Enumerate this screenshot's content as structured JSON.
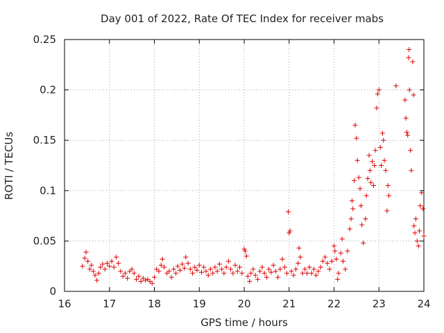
{
  "chart_data": {
    "type": "scatter",
    "title": "Day 001 of 2022, Rate Of TEC Index for receiver mabs",
    "xlabel": "GPS time / hours",
    "ylabel": "ROTI / TECUs",
    "xlim": [
      16,
      24
    ],
    "ylim": [
      0,
      0.25
    ],
    "x_ticks": [
      16,
      17,
      18,
      19,
      20,
      21,
      22,
      23,
      24
    ],
    "x_tick_labels": [
      "16",
      "17",
      "18",
      "19",
      "20",
      "21",
      "22",
      "23",
      "24"
    ],
    "y_ticks": [
      0,
      0.05,
      0.1,
      0.15,
      0.2,
      0.25
    ],
    "y_tick_labels": [
      "0",
      "0.05",
      "0.1",
      "0.15",
      "0.2",
      "0.25"
    ],
    "grid": true,
    "marker": "plus",
    "color": "#dd0000",
    "series": [
      {
        "name": "ROTI",
        "points": [
          [
            16.4,
            0.025
          ],
          [
            16.45,
            0.033
          ],
          [
            16.48,
            0.039
          ],
          [
            16.52,
            0.03
          ],
          [
            16.56,
            0.022
          ],
          [
            16.6,
            0.026
          ],
          [
            16.64,
            0.02
          ],
          [
            16.68,
            0.016
          ],
          [
            16.72,
            0.011
          ],
          [
            16.76,
            0.018
          ],
          [
            16.8,
            0.024
          ],
          [
            16.85,
            0.027
          ],
          [
            16.9,
            0.022
          ],
          [
            16.95,
            0.028
          ],
          [
            17.0,
            0.025
          ],
          [
            17.05,
            0.03
          ],
          [
            17.1,
            0.024
          ],
          [
            17.15,
            0.034
          ],
          [
            17.2,
            0.028
          ],
          [
            17.25,
            0.02
          ],
          [
            17.3,
            0.015
          ],
          [
            17.35,
            0.018
          ],
          [
            17.4,
            0.013
          ],
          [
            17.45,
            0.02
          ],
          [
            17.5,
            0.022
          ],
          [
            17.55,
            0.018
          ],
          [
            17.6,
            0.012
          ],
          [
            17.65,
            0.015
          ],
          [
            17.7,
            0.01
          ],
          [
            17.75,
            0.013
          ],
          [
            17.8,
            0.011
          ],
          [
            17.85,
            0.012
          ],
          [
            17.9,
            0.01
          ],
          [
            17.95,
            0.008
          ],
          [
            18.0,
            0.014
          ],
          [
            18.05,
            0.022
          ],
          [
            18.1,
            0.02
          ],
          [
            18.15,
            0.026
          ],
          [
            18.18,
            0.032
          ],
          [
            18.22,
            0.024
          ],
          [
            18.28,
            0.018
          ],
          [
            18.33,
            0.02
          ],
          [
            18.38,
            0.014
          ],
          [
            18.43,
            0.022
          ],
          [
            18.48,
            0.018
          ],
          [
            18.52,
            0.025
          ],
          [
            18.57,
            0.021
          ],
          [
            18.62,
            0.027
          ],
          [
            18.67,
            0.023
          ],
          [
            18.7,
            0.034
          ],
          [
            18.75,
            0.028
          ],
          [
            18.8,
            0.022
          ],
          [
            18.85,
            0.018
          ],
          [
            18.9,
            0.024
          ],
          [
            18.95,
            0.021
          ],
          [
            19.0,
            0.026
          ],
          [
            19.05,
            0.019
          ],
          [
            19.1,
            0.024
          ],
          [
            19.15,
            0.02
          ],
          [
            19.2,
            0.016
          ],
          [
            19.25,
            0.022
          ],
          [
            19.3,
            0.018
          ],
          [
            19.35,
            0.024
          ],
          [
            19.4,
            0.02
          ],
          [
            19.45,
            0.027
          ],
          [
            19.5,
            0.022
          ],
          [
            19.55,
            0.018
          ],
          [
            19.6,
            0.024
          ],
          [
            19.65,
            0.03
          ],
          [
            19.7,
            0.022
          ],
          [
            19.75,
            0.018
          ],
          [
            19.8,
            0.026
          ],
          [
            19.85,
            0.02
          ],
          [
            19.9,
            0.024
          ],
          [
            19.95,
            0.018
          ],
          [
            20.0,
            0.042
          ],
          [
            20.02,
            0.04
          ],
          [
            20.05,
            0.035
          ],
          [
            20.08,
            0.015
          ],
          [
            20.12,
            0.01
          ],
          [
            20.15,
            0.018
          ],
          [
            20.2,
            0.022
          ],
          [
            20.25,
            0.016
          ],
          [
            20.3,
            0.012
          ],
          [
            20.35,
            0.02
          ],
          [
            20.4,
            0.024
          ],
          [
            20.45,
            0.018
          ],
          [
            20.5,
            0.014
          ],
          [
            20.55,
            0.022
          ],
          [
            20.6,
            0.019
          ],
          [
            20.65,
            0.026
          ],
          [
            20.7,
            0.02
          ],
          [
            20.75,
            0.014
          ],
          [
            20.8,
            0.022
          ],
          [
            20.85,
            0.032
          ],
          [
            20.9,
            0.024
          ],
          [
            20.95,
            0.018
          ],
          [
            20.98,
            0.079
          ],
          [
            21.0,
            0.058
          ],
          [
            21.02,
            0.06
          ],
          [
            21.05,
            0.02
          ],
          [
            21.1,
            0.016
          ],
          [
            21.15,
            0.022
          ],
          [
            21.2,
            0.028
          ],
          [
            21.22,
            0.043
          ],
          [
            21.25,
            0.034
          ],
          [
            21.3,
            0.018
          ],
          [
            21.35,
            0.022
          ],
          [
            21.4,
            0.018
          ],
          [
            21.45,
            0.024
          ],
          [
            21.5,
            0.018
          ],
          [
            21.55,
            0.022
          ],
          [
            21.6,
            0.016
          ],
          [
            21.65,
            0.02
          ],
          [
            21.7,
            0.024
          ],
          [
            21.75,
            0.03
          ],
          [
            21.8,
            0.034
          ],
          [
            21.85,
            0.028
          ],
          [
            21.9,
            0.022
          ],
          [
            21.95,
            0.03
          ],
          [
            22.0,
            0.045
          ],
          [
            22.02,
            0.04
          ],
          [
            22.05,
            0.032
          ],
          [
            22.08,
            0.012
          ],
          [
            22.1,
            0.018
          ],
          [
            22.15,
            0.038
          ],
          [
            22.18,
            0.052
          ],
          [
            22.2,
            0.03
          ],
          [
            22.25,
            0.022
          ],
          [
            22.3,
            0.04
          ],
          [
            22.35,
            0.062
          ],
          [
            22.38,
            0.072
          ],
          [
            22.4,
            0.09
          ],
          [
            22.42,
            0.082
          ],
          [
            22.45,
            0.11
          ],
          [
            22.47,
            0.165
          ],
          [
            22.5,
            0.152
          ],
          [
            22.52,
            0.13
          ],
          [
            22.55,
            0.113
          ],
          [
            22.58,
            0.102
          ],
          [
            22.6,
            0.085
          ],
          [
            22.62,
            0.066
          ],
          [
            22.65,
            0.048
          ],
          [
            22.7,
            0.072
          ],
          [
            22.72,
            0.095
          ],
          [
            22.75,
            0.112
          ],
          [
            22.78,
            0.135
          ],
          [
            22.8,
            0.12
          ],
          [
            22.82,
            0.108
          ],
          [
            22.85,
            0.129
          ],
          [
            22.88,
            0.105
          ],
          [
            22.9,
            0.125
          ],
          [
            22.92,
            0.14
          ],
          [
            22.95,
            0.182
          ],
          [
            22.97,
            0.196
          ],
          [
            23.0,
            0.2
          ],
          [
            23.03,
            0.143
          ],
          [
            23.05,
            0.125
          ],
          [
            23.08,
            0.157
          ],
          [
            23.1,
            0.15
          ],
          [
            23.12,
            0.13
          ],
          [
            23.15,
            0.12
          ],
          [
            23.18,
            0.08
          ],
          [
            23.2,
            0.105
          ],
          [
            23.22,
            0.095
          ],
          [
            23.38,
            0.204
          ],
          [
            23.58,
            0.19
          ],
          [
            23.6,
            0.172
          ],
          [
            23.62,
            0.158
          ],
          [
            23.64,
            0.155
          ],
          [
            23.66,
            0.232
          ],
          [
            23.67,
            0.24
          ],
          [
            23.68,
            0.2
          ],
          [
            23.7,
            0.14
          ],
          [
            23.72,
            0.12
          ],
          [
            23.75,
            0.228
          ],
          [
            23.77,
            0.195
          ],
          [
            23.78,
            0.065
          ],
          [
            23.8,
            0.058
          ],
          [
            23.82,
            0.072
          ],
          [
            23.85,
            0.05
          ],
          [
            23.88,
            0.045
          ],
          [
            23.9,
            0.06
          ],
          [
            23.92,
            0.085
          ],
          [
            23.95,
            0.098
          ],
          [
            23.98,
            0.082
          ],
          [
            24.0,
            0.055
          ]
        ]
      }
    ]
  }
}
